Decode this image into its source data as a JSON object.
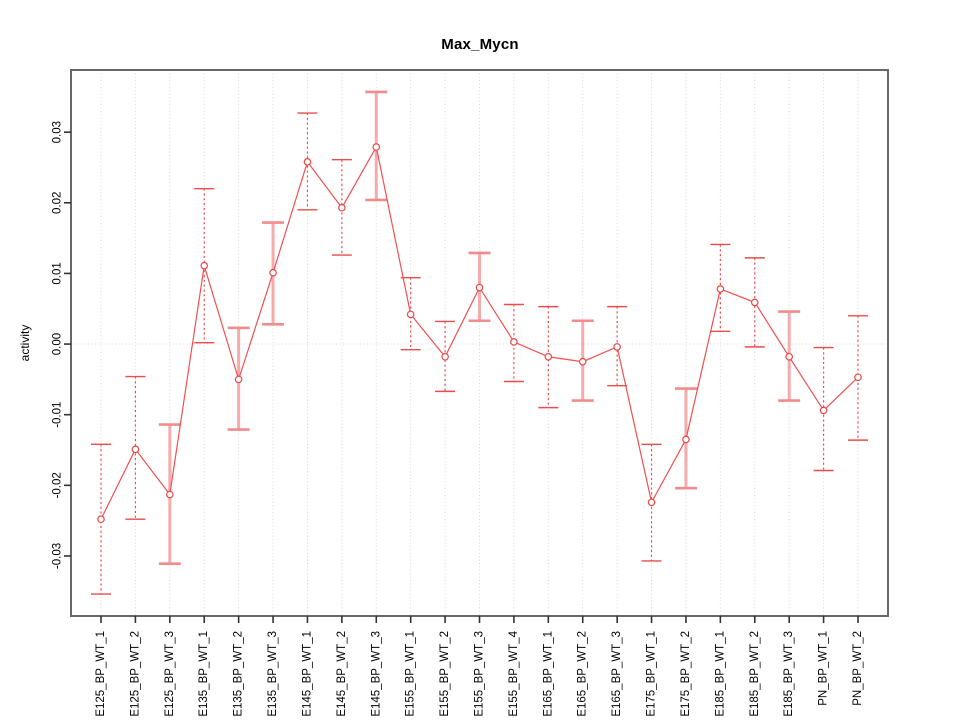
{
  "window": {
    "background": "#ffffff"
  },
  "chart_data": {
    "type": "line",
    "title": "Max_Mycn",
    "xlabel": "",
    "ylabel": "activity",
    "legend": "none",
    "grid": "vertical dotted gridline per category plus dotted horizontal line at y=0",
    "ylim": [
      -0.0385,
      0.0388
    ],
    "yticks": [
      -0.03,
      -0.02,
      -0.01,
      0,
      0.01,
      0.02,
      0.03
    ],
    "ytick_labels": [
      "-0.03",
      "-0.02",
      "-0.01",
      "0.00",
      "0.01",
      "0.02",
      "0.03"
    ],
    "categories": [
      "E125_BP_WT_1",
      "E125_BP_WT_2",
      "E125_BP_WT_3",
      "E135_BP_WT_1",
      "E135_BP_WT_2",
      "E135_BP_WT_3",
      "E145_BP_WT_1",
      "E145_BP_WT_2",
      "E145_BP_WT_3",
      "E155_BP_WT_1",
      "E155_BP_WT_2",
      "E155_BP_WT_3",
      "E155_BP_WT_4",
      "E165_BP_WT_1",
      "E165_BP_WT_2",
      "E165_BP_WT_3",
      "E175_BP_WT_1",
      "E175_BP_WT_2",
      "E185_BP_WT_1",
      "E185_BP_WT_2",
      "E185_BP_WT_3",
      "PN_BP_WT_1",
      "PN_BP_WT_2"
    ],
    "series": [
      {
        "name": "activity",
        "marker": "open-circle",
        "values": [
          -0.0248,
          -0.0149,
          -0.0213,
          0.0111,
          -0.005,
          0.0101,
          0.0258,
          0.0193,
          0.0279,
          0.0042,
          -0.0018,
          0.008,
          0.0003,
          -0.0018,
          -0.0025,
          -0.0004,
          -0.0224,
          -0.0135,
          0.0078,
          0.0059,
          -0.0018,
          -0.0094,
          -0.0047
        ],
        "error_low": [
          -0.0354,
          -0.0248,
          -0.0311,
          0.0002,
          -0.0121,
          0.0028,
          0.019,
          0.0126,
          0.0204,
          -0.0008,
          -0.0067,
          0.0033,
          -0.0053,
          -0.009,
          -0.008,
          -0.0059,
          -0.0307,
          -0.0204,
          0.0018,
          -0.0004,
          -0.008,
          -0.0179,
          -0.0136
        ],
        "error_high": [
          -0.0142,
          -0.0046,
          -0.0114,
          0.022,
          0.0023,
          0.0172,
          0.0327,
          0.0261,
          0.0357,
          0.0094,
          0.0032,
          0.0129,
          0.0056,
          0.0053,
          0.0033,
          0.0053,
          -0.0142,
          -0.0063,
          0.0141,
          0.0122,
          0.0046,
          -0.0005,
          0.004
        ],
        "bar_styles": [
          "dotted",
          "dotted",
          "solid",
          "dotted",
          "solid",
          "solid",
          "dotted",
          "dotted",
          "solid",
          "dotted",
          "dotted",
          "solid",
          "dotted",
          "dotted",
          "solid",
          "dotted",
          "dotted",
          "solid",
          "dotted",
          "dotted",
          "solid",
          "dotted",
          "dotted"
        ]
      }
    ],
    "colors": {
      "line": "#f15050",
      "marker_stroke": "#ee4545",
      "errorbar_dotted": "#ec4b4b",
      "errorbar_solid": "#f5abab",
      "errorbar_solid_cap": "#f08c8c",
      "grid": "#d7d7d7",
      "plot_border": "#686868",
      "tick": "#333333",
      "text": "#000000"
    }
  }
}
